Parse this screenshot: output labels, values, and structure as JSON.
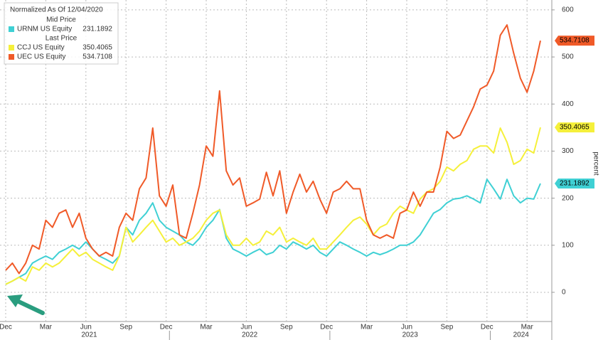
{
  "chart_data": {
    "type": "line",
    "title": "Normalized As Of 12/04/2020",
    "y_axis_label": "percent",
    "categories": [
      "Dec",
      null,
      null,
      null,
      null,
      null,
      "Mar",
      null,
      null,
      null,
      null,
      null,
      "Jun",
      null,
      null,
      null,
      null,
      null,
      "Sep",
      null,
      null,
      null,
      null,
      null,
      "Dec",
      null,
      null,
      null,
      null,
      null,
      "Mar",
      null,
      null,
      null,
      null,
      null,
      "Jun",
      null,
      null,
      null,
      null,
      null,
      "Sep",
      null,
      null,
      null,
      null,
      null,
      "Dec",
      null,
      null,
      null,
      null,
      null,
      "Mar",
      null,
      null,
      null,
      null,
      null,
      "Jun",
      null,
      null,
      null,
      null,
      null,
      "Sep",
      null,
      null,
      null,
      null,
      null,
      "Dec",
      null,
      null,
      null,
      null,
      null,
      "Mar",
      null,
      null
    ],
    "year_labels": [
      "2021",
      "2022",
      "2023",
      "2024"
    ],
    "ylim": [
      -62,
      621
    ],
    "yticks": [
      0,
      100,
      200,
      300,
      400,
      500,
      600
    ],
    "grid": true,
    "legend_position": "upper-left",
    "series": [
      {
        "name": "URNM US Equity",
        "price_type": "Mid Price",
        "color": "#3fd0d4",
        "values": [
          17,
          24,
          32,
          40,
          62,
          70,
          77,
          70,
          85,
          92,
          100,
          92,
          107,
          92,
          77,
          70,
          62,
          77,
          138,
          122,
          153,
          168,
          190,
          153,
          138,
          130,
          122,
          107,
          100,
          115,
          138,
          153,
          176,
          115,
          92,
          85,
          77,
          85,
          92,
          80,
          85,
          100,
          92,
          107,
          100,
          92,
          100,
          85,
          77,
          92,
          107,
          100,
          92,
          85,
          77,
          85,
          80,
          85,
          92,
          100,
          100,
          107,
          122,
          145,
          168,
          176,
          190,
          198,
          200,
          205,
          198,
          190,
          240,
          220,
          198,
          240,
          205,
          190,
          200,
          198,
          231.1892
        ]
      },
      {
        "name": "CCJ US Equity",
        "price_type": "Last Price",
        "color": "#f5f03a",
        "values": [
          17,
          24,
          32,
          24,
          54,
          47,
          62,
          54,
          62,
          77,
          92,
          77,
          85,
          70,
          62,
          54,
          47,
          77,
          138,
          107,
          122,
          138,
          153,
          130,
          107,
          115,
          100,
          107,
          115,
          130,
          153,
          168,
          175,
          122,
          100,
          100,
          115,
          100,
          107,
          130,
          122,
          138,
          107,
          115,
          107,
          100,
          115,
          92,
          92,
          107,
          122,
          138,
          153,
          160,
          145,
          122,
          138,
          145,
          168,
          183,
          175,
          168,
          198,
          213,
          220,
          236,
          266,
          258,
          272,
          280,
          304,
          311,
          311,
          296,
          349,
          319,
          272,
          280,
          304,
          296,
          350.4065
        ]
      },
      {
        "name": "UEC US Equity",
        "price_type": "Last Price",
        "color": "#f05a28",
        "values": [
          47,
          62,
          40,
          62,
          100,
          92,
          153,
          138,
          168,
          175,
          138,
          168,
          115,
          92,
          77,
          85,
          77,
          138,
          168,
          153,
          220,
          243,
          349,
          205,
          183,
          228,
          122,
          115,
          168,
          228,
          311,
          289,
          428,
          258,
          228,
          243,
          183,
          190,
          198,
          255,
          205,
          258,
          168,
          213,
          251,
          213,
          236,
          198,
          168,
          213,
          220,
          236,
          220,
          220,
          153,
          122,
          115,
          122,
          115,
          168,
          175,
          213,
          183,
          213,
          213,
          266,
          342,
          327,
          334,
          364,
          394,
          432,
          440,
          470,
          546,
          568,
          508,
          455,
          425,
          470,
          534.7108
        ]
      }
    ]
  }
}
